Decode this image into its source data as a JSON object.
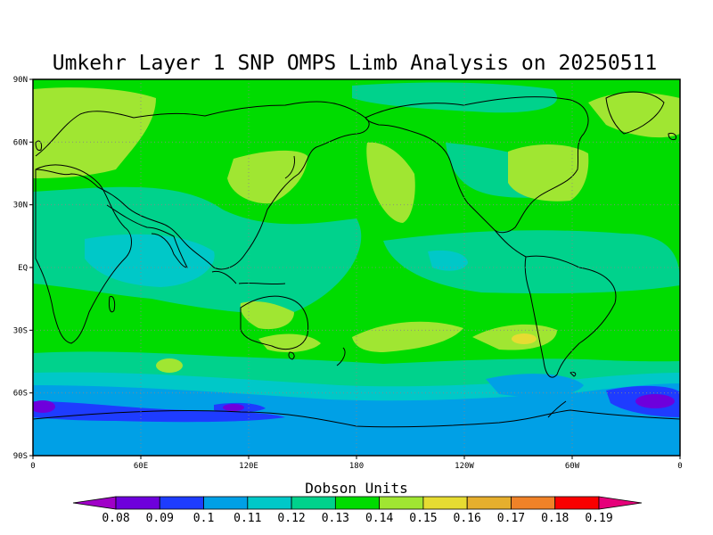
{
  "title": "Umkehr Layer 1 SNP OMPS Limb Analysis on 20250511",
  "map": {
    "lat_ticks": [
      "90N",
      "60N",
      "30N",
      "EQ",
      "30S",
      "60S",
      "90S"
    ],
    "lon_ticks": [
      "0",
      "60E",
      "120E",
      "180",
      "120W",
      "60W",
      "0"
    ]
  },
  "colorbar": {
    "title": "Dobson Units",
    "labels": [
      "0.08",
      "0.09",
      "0.1",
      "0.11",
      "0.12",
      "0.13",
      "0.14",
      "0.15",
      "0.16",
      "0.17",
      "0.18",
      "0.19"
    ],
    "colors": [
      "#a000c8",
      "#6e00dc",
      "#1e3cff",
      "#00a0e6",
      "#00c8c8",
      "#00d28c",
      "#00dc00",
      "#a0e632",
      "#e6dc32",
      "#e6af2d",
      "#f08228",
      "#fa0000",
      "#e6007a"
    ]
  },
  "chart_data": {
    "type": "heatmap",
    "title": "Umkehr Layer 1 SNP OMPS Limb Analysis on 20250511",
    "xlabel": "",
    "ylabel": "",
    "xlim": [
      0,
      360
    ],
    "ylim": [
      -90,
      90
    ],
    "units": "Dobson Units",
    "levels": [
      0.08,
      0.09,
      0.1,
      0.11,
      0.12,
      0.13,
      0.14,
      0.15,
      0.16,
      0.17,
      0.18,
      0.19
    ],
    "dominant_value_range": [
      0.13,
      0.14
    ],
    "features": [
      {
        "region": "North Atlantic / Europe high latitudes",
        "value_range": [
          0.14,
          0.15
        ]
      },
      {
        "region": "Central North Pacific",
        "value_range": [
          0.14,
          0.15
        ]
      },
      {
        "region": "East Asia / Japan",
        "value_range": [
          0.14,
          0.15
        ]
      },
      {
        "region": "Eastern North America",
        "value_range": [
          0.14,
          0.15
        ]
      },
      {
        "region": "Indian Ocean",
        "value_range": [
          0.12,
          0.13
        ]
      },
      {
        "region": "South Pacific / South Atlantic subtropics",
        "value_range": [
          0.14,
          0.16
        ]
      },
      {
        "region": "Southern Ocean band",
        "value_range": [
          0.1,
          0.12
        ]
      },
      {
        "region": "South Atlantic near 60S",
        "value_range": [
          0.09,
          0.1
        ]
      },
      {
        "region": "Antarctic coast near 120E",
        "value_range": [
          0.09,
          0.1
        ]
      }
    ]
  }
}
